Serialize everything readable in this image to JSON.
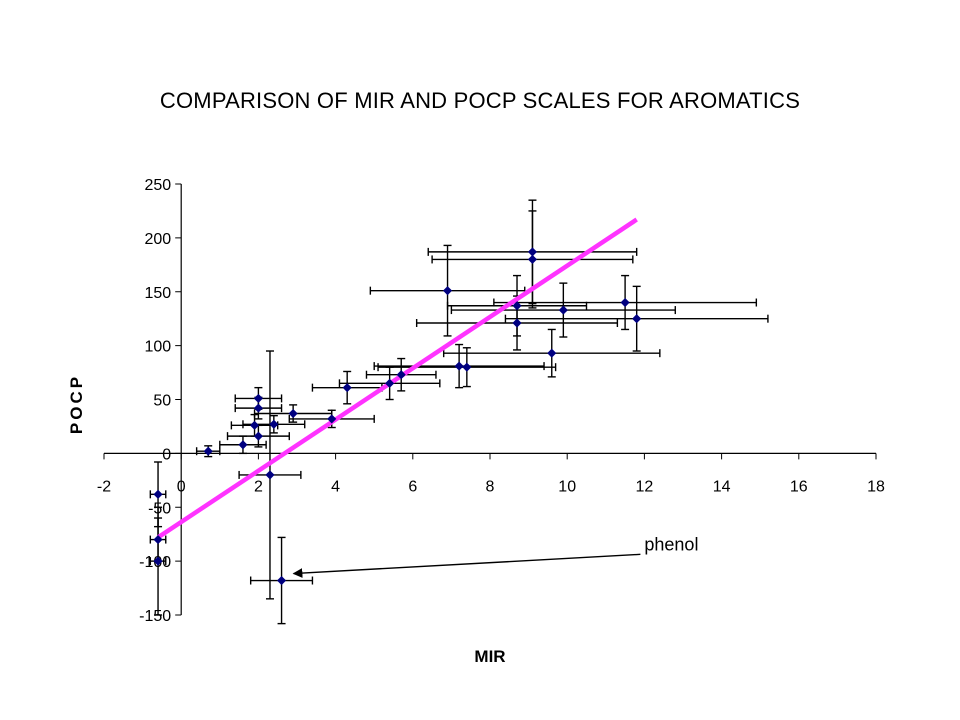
{
  "chart_data": {
    "type": "scatter",
    "title": "COMPARISON OF MIR AND POCP SCALES FOR AROMATICS",
    "xlabel": "MIR",
    "ylabel": "POCP",
    "xlim": [
      -2,
      18
    ],
    "ylim": [
      -150,
      250
    ],
    "xticks": [
      "-2",
      "0",
      "2",
      "4",
      "6",
      "8",
      "10",
      "12",
      "14",
      "16",
      "18"
    ],
    "yticks": [
      "250",
      "200",
      "150",
      "100",
      "50",
      "0",
      "-50",
      "-100",
      "-150"
    ],
    "grid": false,
    "points": [
      {
        "x": 0.7,
        "y": 2,
        "xerr": 0.3,
        "yerr": 5
      },
      {
        "x": 1.6,
        "y": 8,
        "xerr": 0.6,
        "yerr": 8
      },
      {
        "x": 1.9,
        "y": 26,
        "xerr": 0.6,
        "yerr": 10
      },
      {
        "x": 2.0,
        "y": 16,
        "xerr": 0.8,
        "yerr": 10
      },
      {
        "x": 2.0,
        "y": 42,
        "xerr": 0.6,
        "yerr": 10
      },
      {
        "x": 2.0,
        "y": 51,
        "xerr": 0.6,
        "yerr": 10
      },
      {
        "x": 2.4,
        "y": 27,
        "xerr": 0.8,
        "yerr": 8
      },
      {
        "x": 2.9,
        "y": 37,
        "xerr": 1.0,
        "yerr": 8
      },
      {
        "x": 2.3,
        "y": -20,
        "xerr": 0.8,
        "yerr": 115
      },
      {
        "x": 2.6,
        "y": -118,
        "xerr": 0.8,
        "yerr": 40
      },
      {
        "x": -0.6,
        "y": -38,
        "xerr": 0.2,
        "yerr": 30
      },
      {
        "x": -0.6,
        "y": -80,
        "xerr": 0.2,
        "yerr": 20
      },
      {
        "x": -0.6,
        "y": -100,
        "xerr": 0.2,
        "yerr": 50
      },
      {
        "x": 3.9,
        "y": 32,
        "xerr": 1.1,
        "yerr": 8
      },
      {
        "x": 4.3,
        "y": 61,
        "xerr": 0.9,
        "yerr": 15
      },
      {
        "x": 5.4,
        "y": 65,
        "xerr": 1.3,
        "yerr": 15
      },
      {
        "x": 5.7,
        "y": 73,
        "xerr": 0.9,
        "yerr": 15
      },
      {
        "x": 7.2,
        "y": 81,
        "xerr": 2.2,
        "yerr": 20
      },
      {
        "x": 7.4,
        "y": 80,
        "xerr": 2.3,
        "yerr": 18
      },
      {
        "x": 6.9,
        "y": 151,
        "xerr": 2.0,
        "yerr": 42
      },
      {
        "x": 8.7,
        "y": 137,
        "xerr": 1.8,
        "yerr": 28
      },
      {
        "x": 8.7,
        "y": 121,
        "xerr": 2.6,
        "yerr": 25
      },
      {
        "x": 9.1,
        "y": 187,
        "xerr": 2.7,
        "yerr": 48
      },
      {
        "x": 9.1,
        "y": 180,
        "xerr": 2.6,
        "yerr": 45
      },
      {
        "x": 9.6,
        "y": 93,
        "xerr": 2.8,
        "yerr": 22
      },
      {
        "x": 9.9,
        "y": 133,
        "xerr": 2.9,
        "yerr": 25
      },
      {
        "x": 11.5,
        "y": 140,
        "xerr": 3.4,
        "yerr": 25
      },
      {
        "x": 11.8,
        "y": 125,
        "xerr": 3.4,
        "yerr": 30
      }
    ],
    "trendline": {
      "from": [
        -0.6,
        -78
      ],
      "to": [
        11.8,
        217
      ],
      "color": "#ff33ff"
    },
    "annotations": [
      {
        "text": "phenol",
        "point": [
          2.6,
          -118
        ],
        "label_at": [
          12.0,
          -90
        ]
      }
    ],
    "marker_color": "#000080",
    "errorbar_color": "#000000"
  }
}
